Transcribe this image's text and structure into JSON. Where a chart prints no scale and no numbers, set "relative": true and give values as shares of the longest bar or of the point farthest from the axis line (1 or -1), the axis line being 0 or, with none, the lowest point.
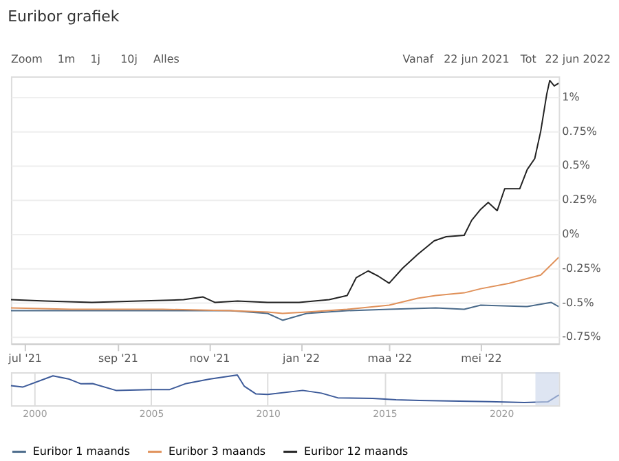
{
  "chart_data": [
    {
      "type": "line",
      "title": "Euribor grafiek",
      "annotations": [
        "Zoom",
        "1m",
        "1j",
        "10j",
        "Alles",
        "Vanaf",
        "22 jun 2021",
        "Tot",
        "22 jun 2022"
      ],
      "xlim": [
        "2021-06-22",
        "2022-06-22"
      ],
      "ylim": [
        -0.8,
        1.15
      ],
      "xticks": [
        {
          "value": "2021-07-01",
          "label": "jul '21"
        },
        {
          "value": "2021-09-01",
          "label": "sep '21"
        },
        {
          "value": "2021-11-01",
          "label": "nov '21"
        },
        {
          "value": "2022-01-01",
          "label": "jan '22"
        },
        {
          "value": "2022-03-01",
          "label": "maa '22"
        },
        {
          "value": "2022-05-01",
          "label": "mei '22"
        }
      ],
      "yticks": [
        {
          "value": -0.75,
          "label": "-0.75%"
        },
        {
          "value": -0.5,
          "label": "-0.5%"
        },
        {
          "value": -0.25,
          "label": "-0.25%"
        },
        {
          "value": 0,
          "label": "0%"
        },
        {
          "value": 0.25,
          "label": "0.25%"
        },
        {
          "value": 0.5,
          "label": "0.5%"
        },
        {
          "value": 0.75,
          "label": "0.75%"
        },
        {
          "value": 1,
          "label": "1%"
        }
      ],
      "grid": "y",
      "legend": "bottom",
      "marker": "none",
      "line_style": "solid",
      "series": [
        {
          "name": "Euribor 1 maands",
          "color": "#4a6a8a",
          "x": [
            "2021-06-22",
            "2021-08-01",
            "2021-10-01",
            "2021-11-15",
            "2021-12-10",
            "2021-12-20",
            "2022-01-05",
            "2022-02-01",
            "2022-03-01",
            "2022-04-01",
            "2022-04-20",
            "2022-05-01",
            "2022-06-01",
            "2022-06-17",
            "2022-06-22"
          ],
          "values": [
            -0.56,
            -0.56,
            -0.56,
            -0.56,
            -0.58,
            -0.63,
            -0.58,
            -0.56,
            -0.55,
            -0.54,
            -0.55,
            -0.52,
            -0.53,
            -0.5,
            -0.53
          ]
        },
        {
          "name": "Euribor 3 maands",
          "color": "#e0915a",
          "x": [
            "2021-06-22",
            "2021-08-01",
            "2021-10-01",
            "2021-11-15",
            "2021-12-10",
            "2021-12-20",
            "2022-01-05",
            "2022-02-01",
            "2022-03-01",
            "2022-03-20",
            "2022-04-01",
            "2022-04-20",
            "2022-05-01",
            "2022-05-20",
            "2022-06-10",
            "2022-06-22"
          ],
          "values": [
            -0.54,
            -0.55,
            -0.55,
            -0.56,
            -0.57,
            -0.58,
            -0.57,
            -0.55,
            -0.52,
            -0.47,
            -0.45,
            -0.43,
            -0.4,
            -0.36,
            -0.3,
            -0.17
          ]
        },
        {
          "name": "Euribor 12 maands",
          "color": "#222222",
          "x": [
            "2021-06-22",
            "2021-07-15",
            "2021-08-15",
            "2021-09-15",
            "2021-10-15",
            "2021-10-28",
            "2021-11-05",
            "2021-11-20",
            "2021-12-10",
            "2021-12-31",
            "2022-01-20",
            "2022-02-01",
            "2022-02-07",
            "2022-02-15",
            "2022-02-22",
            "2022-03-01",
            "2022-03-10",
            "2022-03-20",
            "2022-03-31",
            "2022-04-08",
            "2022-04-20",
            "2022-04-25",
            "2022-05-01",
            "2022-05-06",
            "2022-05-12",
            "2022-05-17",
            "2022-05-27",
            "2022-06-01",
            "2022-06-06",
            "2022-06-10",
            "2022-06-14",
            "2022-06-16",
            "2022-06-19",
            "2022-06-22"
          ],
          "values": [
            -0.48,
            -0.49,
            -0.5,
            -0.49,
            -0.48,
            -0.46,
            -0.5,
            -0.49,
            -0.5,
            -0.5,
            -0.48,
            -0.45,
            -0.32,
            -0.27,
            -0.31,
            -0.36,
            -0.25,
            -0.15,
            -0.05,
            -0.02,
            -0.01,
            0.1,
            0.18,
            0.23,
            0.17,
            0.33,
            0.33,
            0.47,
            0.55,
            0.75,
            1.02,
            1.12,
            1.08,
            1.1
          ]
        }
      ]
    },
    {
      "type": "line",
      "relative": true,
      "grid": "x",
      "xlim": [
        1999,
        2022.47
      ],
      "xticks": [
        2000,
        2005,
        2010,
        2015,
        2020
      ],
      "bands": [
        {
          "axis": "x",
          "from": 2021.47,
          "to": 2022.47,
          "color": "#c8d4ea"
        }
      ],
      "series": [
        {
          "color": "#3c5a99",
          "x": [
            1999.0,
            1999.5,
            2000.8,
            2001.5,
            2002.0,
            2002.5,
            2003.5,
            2005.0,
            2005.8,
            2006.5,
            2007.5,
            2008.7,
            2009.0,
            2009.5,
            2010.0,
            2011.5,
            2012.3,
            2013.0,
            2014.5,
            2015.5,
            2016.5,
            2019.5,
            2021.0,
            2022.0,
            2022.47
          ],
          "values": [
            0.61,
            0.56,
            0.97,
            0.85,
            0.68,
            0.69,
            0.44,
            0.47,
            0.47,
            0.69,
            0.85,
            1.0,
            0.59,
            0.31,
            0.29,
            0.44,
            0.34,
            0.17,
            0.15,
            0.1,
            0.07,
            0.03,
            0.0,
            0.02,
            0.27
          ]
        }
      ]
    }
  ]
}
